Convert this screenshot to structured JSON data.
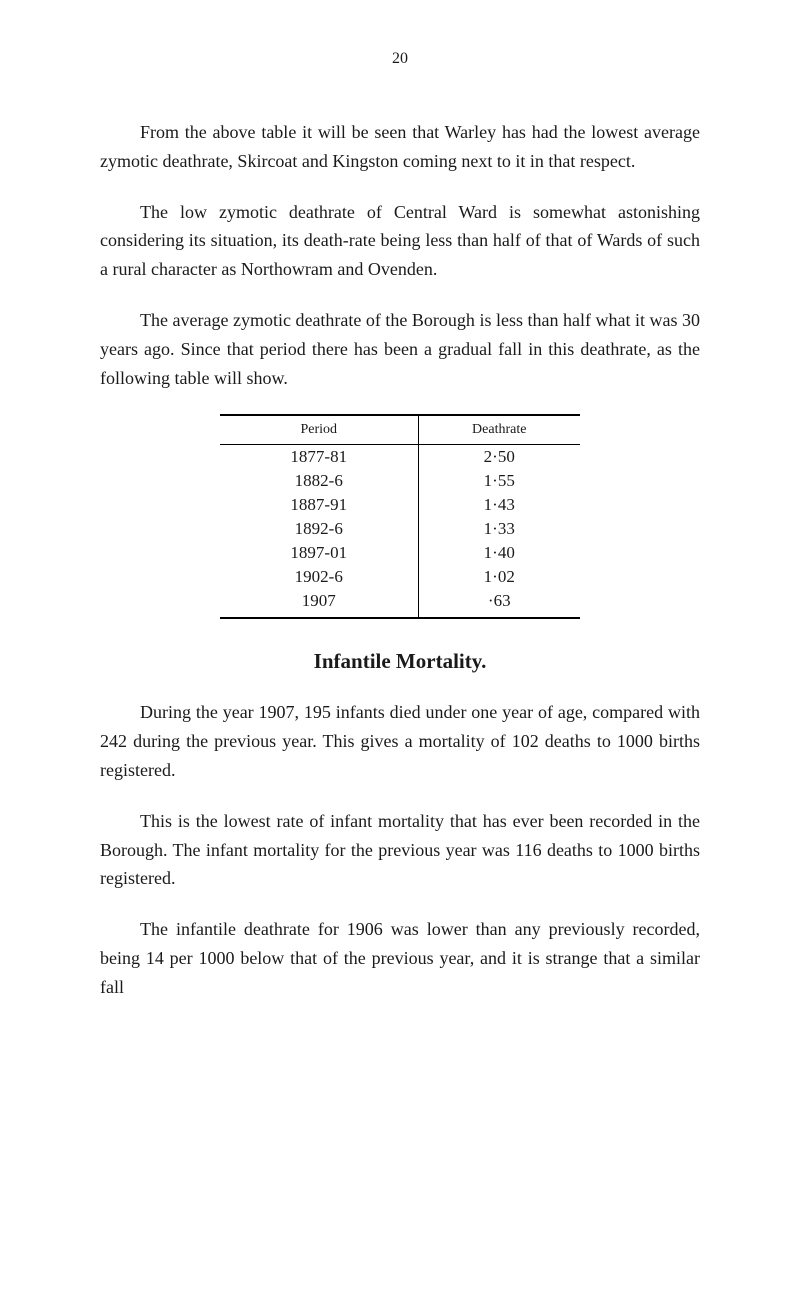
{
  "page_number": "20",
  "paragraphs": {
    "p1": "From the above table it will be seen that Warley has had the lowest average zymotic deathrate, Skircoat and Kingston coming next to it in that respect.",
    "p2": "The low zymotic deathrate of Central Ward is somewhat astonishing considering its situation, its death-rate being less than half of that of Wards of such a rural character as Northowram and Ovenden.",
    "p3": "The average zymotic deathrate of the Borough is less than half what it was 30 years ago. Since that period there has been a gradual fall in this deathrate, as the following table will show.",
    "p4": "During the year 1907, 195 infants died under one year of age, compared with 242 during the previous year. This gives a mortality of 102 deaths to 1000 births registered.",
    "p5": "This is the lowest rate of infant mortality that has ever been recorded in the Borough. The infant mortality for the previous year was 116 deaths to 1000 births registered.",
    "p6": "The infantile deathrate for 1906 was lower than any previously recorded, being 14 per 1000 below that of the previous year, and it is strange that a similar fall"
  },
  "table": {
    "headers": {
      "col1": "Period",
      "col2": "Deathrate"
    },
    "rows": [
      {
        "period": "1877-81",
        "deathrate": "2·50"
      },
      {
        "period": "1882-6",
        "deathrate": "1·55"
      },
      {
        "period": "1887-91",
        "deathrate": "1·43"
      },
      {
        "period": "1892-6",
        "deathrate": "1·33"
      },
      {
        "period": "1897-01",
        "deathrate": "1·40"
      },
      {
        "period": "1902-6",
        "deathrate": "1·02"
      },
      {
        "period": "1907",
        "deathrate": "·63"
      }
    ]
  },
  "section_heading": "Infantile Mortality.",
  "colors": {
    "background": "#ffffff",
    "text": "#1a1a1a",
    "border": "#000000"
  },
  "typography": {
    "body_fontsize": 18,
    "heading_fontsize": 21,
    "pagenum_fontsize": 16,
    "table_header_fontsize": 14,
    "table_body_fontsize": 17,
    "font_family": "Georgia, Times New Roman, serif"
  }
}
